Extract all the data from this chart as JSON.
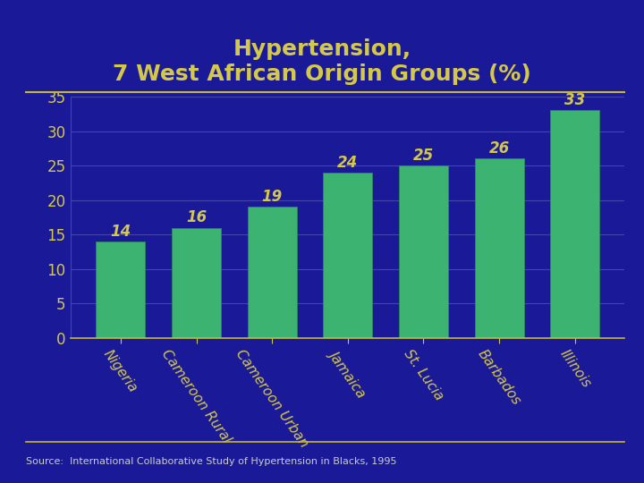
{
  "title": "Hypertension,\n7 West African Origin Groups (%)",
  "title_color": "#D4C84A",
  "title_fontsize": 18,
  "background_color": "#1a1a99",
  "plot_bg_color": "#1a1a99",
  "bar_color": "#3cb371",
  "bar_edge_color": "#2e8b57",
  "categories": [
    "Nigeria",
    "Cameroon Rural",
    "Cameroon Urban",
    "Jamaica",
    "St. Lucia",
    "Barbados",
    "Illinois"
  ],
  "values": [
    14,
    16,
    19,
    24,
    25,
    26,
    33
  ],
  "ylim": [
    0,
    35
  ],
  "yticks": [
    0,
    5,
    10,
    15,
    20,
    25,
    30,
    35
  ],
  "tick_color": "#D4C84A",
  "grid_color": "#4444aa",
  "value_label_color": "#D4C84A",
  "value_label_fontsize": 12,
  "xlabel_rotation": -55,
  "xlabel_fontsize": 11,
  "source_text": "Source:  International Collaborative Study of Hypertension in Blacks, 1995",
  "source_color": "#cccccc",
  "source_fontsize": 8,
  "line_color": "#C8B830",
  "tick_label_fontsize": 12
}
